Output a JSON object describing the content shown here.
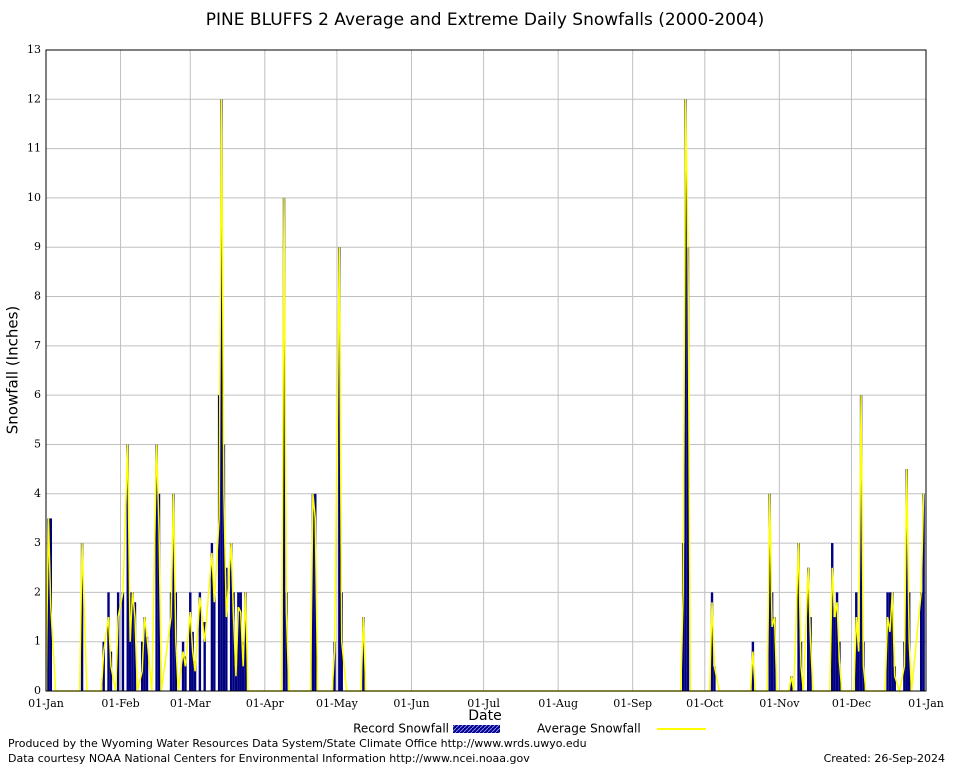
{
  "chart_data": {
    "type": "bar",
    "title": "PINE BLUFFS 2 Average and Extreme Daily Snowfalls (2000-2004)",
    "xlabel": "Date",
    "ylabel": "Snowfall (Inches)",
    "x": [
      0,
      1,
      2,
      4,
      14,
      15,
      17,
      23,
      24,
      26,
      27,
      29,
      30,
      32,
      34,
      35,
      36,
      37,
      38,
      40,
      41,
      42,
      44,
      46,
      47,
      48,
      52,
      53,
      54,
      55,
      57,
      58,
      60,
      61,
      62,
      64,
      66,
      69,
      70,
      72,
      73,
      74,
      75,
      77,
      78,
      79,
      80,
      81,
      82,
      83,
      84,
      98,
      99,
      100,
      101,
      110,
      111,
      112,
      113,
      119,
      120,
      122,
      123,
      125,
      131,
      132,
      133,
      264,
      265,
      266,
      267,
      268,
      276,
      277,
      278,
      280,
      293,
      294,
      295,
      300,
      301,
      302,
      303,
      304,
      309,
      310,
      311,
      313,
      314,
      315,
      317,
      318,
      319,
      326,
      327,
      328,
      329,
      330,
      331,
      336,
      337,
      338,
      339,
      340,
      341,
      349,
      350,
      351,
      352,
      353,
      355,
      357,
      358,
      359,
      360,
      364,
      365
    ],
    "series": [
      {
        "name": "Record Snowfall",
        "type": "bar",
        "color": "#000080",
        "values": [
          0,
          3.5,
          3.5,
          0,
          0,
          3,
          0,
          0,
          1,
          2,
          0.8,
          0,
          2,
          2,
          5,
          2,
          2,
          1.8,
          0,
          1,
          1.5,
          1.1,
          0,
          5,
          4,
          0,
          2,
          4,
          2,
          0,
          1,
          0.7,
          2,
          1.2,
          0.6,
          2,
          1.4,
          3,
          2,
          6,
          12,
          5,
          2.5,
          3,
          2,
          0.5,
          2,
          2,
          1,
          2,
          0,
          0,
          10,
          2,
          0,
          0,
          4,
          4,
          0,
          0,
          1,
          9,
          2,
          0,
          0,
          1.5,
          0,
          0,
          3,
          12,
          9,
          0,
          0,
          2,
          0.5,
          0,
          0,
          1,
          0,
          0,
          4,
          2,
          1.5,
          0,
          0,
          0.3,
          0,
          3,
          1,
          0,
          2.5,
          1.5,
          0,
          0,
          3,
          1.5,
          2,
          1,
          0,
          0,
          2,
          1,
          6,
          1,
          0,
          0,
          2,
          2,
          2,
          0.5,
          0,
          1,
          4.5,
          2,
          0,
          2,
          4
        ]
      },
      {
        "name": "Average Snowfall",
        "type": "line",
        "color": "#ffff00",
        "values": [
          0,
          3.5,
          1.7,
          0,
          0,
          3,
          0,
          0,
          0.8,
          1.5,
          0.5,
          0,
          1.5,
          2,
          5,
          1,
          2,
          1.5,
          0,
          0.4,
          1.5,
          1.1,
          0,
          5,
          3.3,
          0,
          1.5,
          4,
          1,
          0,
          0.8,
          0.5,
          1.6,
          0.8,
          0.4,
          1.9,
          1,
          2.8,
          1.8,
          3.5,
          12,
          4,
          1.5,
          3,
          1.5,
          0.3,
          1.7,
          1.6,
          0.5,
          2,
          0,
          0,
          10,
          1.6,
          0,
          0,
          4,
          3.5,
          0,
          0,
          0.8,
          9,
          1,
          0,
          0,
          1.5,
          0,
          0,
          2,
          12,
          9,
          0,
          0,
          1.8,
          0.5,
          0,
          0,
          0.8,
          0,
          0,
          4,
          1.3,
          1.5,
          0,
          0,
          0.3,
          0,
          3,
          0.5,
          0,
          2.5,
          1,
          0,
          0,
          2.5,
          1.5,
          1.8,
          0.6,
          0,
          0,
          1.5,
          0.8,
          6,
          0.5,
          0,
          0,
          1.5,
          1.2,
          2,
          0.3,
          0,
          0.5,
          4.5,
          1,
          0,
          2,
          4
        ]
      }
    ],
    "xlim": [
      0,
      366
    ],
    "xticks": [
      {
        "value": 0,
        "label": "01-Jan"
      },
      {
        "value": 31,
        "label": "01-Feb"
      },
      {
        "value": 60,
        "label": "01-Mar"
      },
      {
        "value": 91,
        "label": "01-Apr"
      },
      {
        "value": 121,
        "label": "01-May"
      },
      {
        "value": 152,
        "label": "01-Jun"
      },
      {
        "value": 182,
        "label": "01-Jul"
      },
      {
        "value": 213,
        "label": "01-Aug"
      },
      {
        "value": 244,
        "label": "01-Sep"
      },
      {
        "value": 274,
        "label": "01-Oct"
      },
      {
        "value": 305,
        "label": "01-Nov"
      },
      {
        "value": 335,
        "label": "01-Dec"
      },
      {
        "value": 366,
        "label": "01-Jan"
      }
    ],
    "ylim": [
      0,
      13
    ],
    "yticks": [
      0,
      1,
      2,
      3,
      4,
      5,
      6,
      7,
      8,
      9,
      10,
      11,
      12,
      13
    ],
    "grid": true,
    "footer_left": [
      "Produced by the Wyoming Water Resources Data System/State Climate Office http://www.wrds.uwyo.edu",
      "Data courtesy NOAA National Centers for Environmental Information http://www.ncei.noaa.gov"
    ],
    "footer_right": "Created:  26-Sep-2024"
  }
}
